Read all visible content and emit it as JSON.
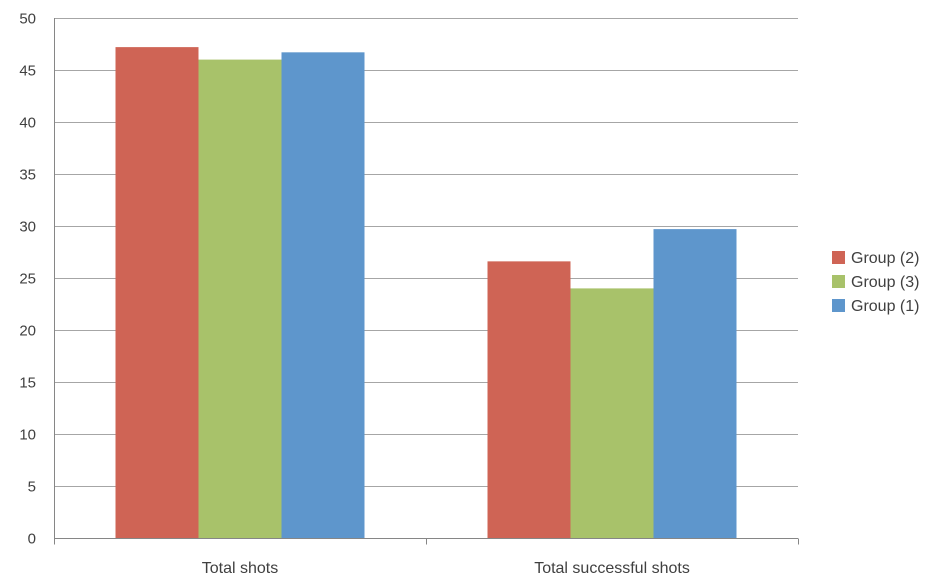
{
  "chart_data": {
    "type": "bar",
    "categories": [
      "Total shots",
      "Total successful shots"
    ],
    "series": [
      {
        "name": "Group (2)",
        "values": [
          47.2,
          26.6
        ],
        "color": "#CF6455"
      },
      {
        "name": "Group (3)",
        "values": [
          46.0,
          24.0
        ],
        "color": "#A8C26A"
      },
      {
        "name": "Group (1)",
        "values": [
          46.7,
          29.7
        ],
        "color": "#5E96CC"
      }
    ],
    "title": "",
    "xlabel": "",
    "ylabel": "",
    "ylim": [
      0,
      50
    ],
    "yticks": [
      0,
      5,
      10,
      15,
      20,
      25,
      30,
      35,
      40,
      45,
      50
    ],
    "grid": true,
    "legend": "right"
  }
}
